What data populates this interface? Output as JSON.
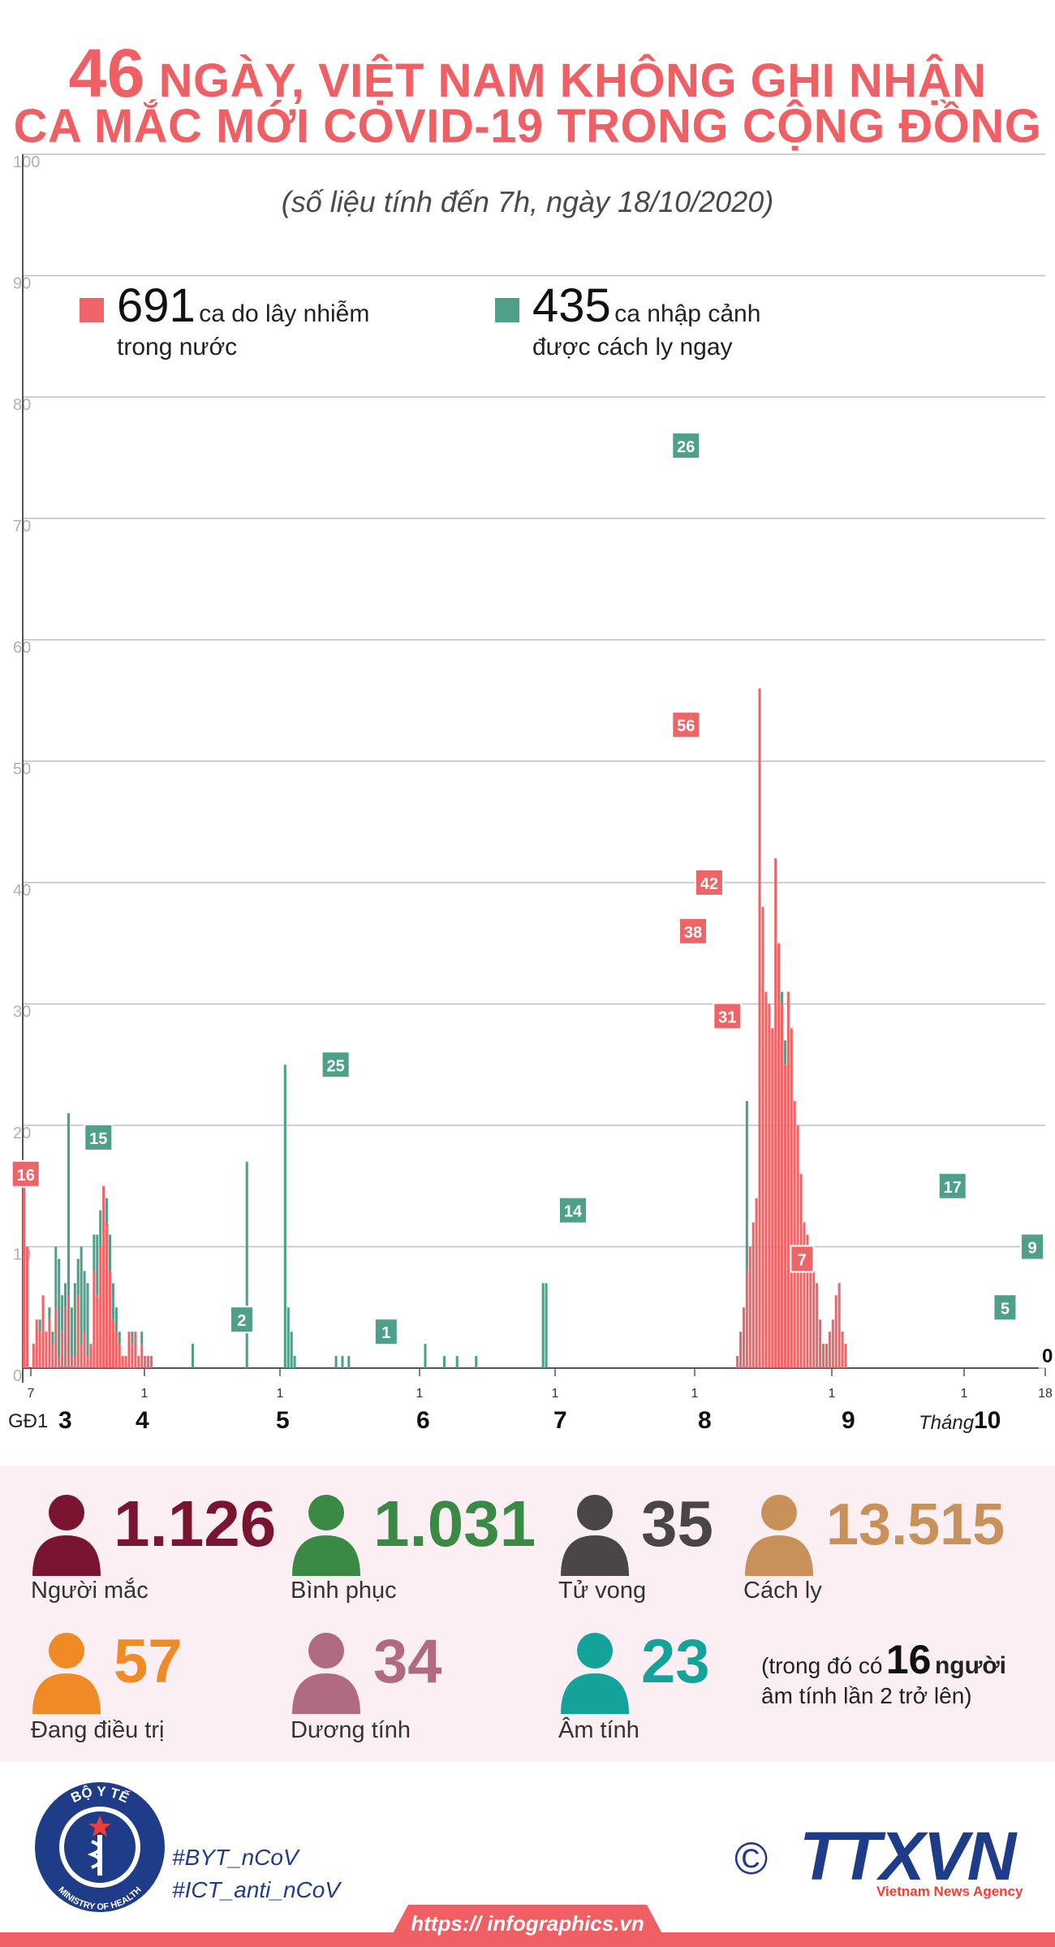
{
  "header": {
    "title_number": "46",
    "title_line1_rest": " NGÀY, VIỆT NAM KHÔNG GHI NHẬN",
    "title_line2": "CA MẮC MỚI COVID-19 TRONG CỘNG ĐỒNG",
    "subtitle": "(số liệu tính đến 7h, ngày 18/10/2020)"
  },
  "legend": {
    "domestic": {
      "number": "691",
      "label_line1": "ca do lây nhiễm",
      "label_line2": "trong nước",
      "color": "#ef6467"
    },
    "imported": {
      "number": "435",
      "label_line1": "ca nhập cảnh",
      "label_line2": "được cách ly ngay",
      "color": "#4ea08a"
    }
  },
  "chart_data": {
    "type": "bar",
    "stacked": true,
    "ylim": [
      0,
      100
    ],
    "yticks": [
      0,
      10,
      20,
      30,
      40,
      50,
      60,
      70,
      80,
      90,
      100
    ],
    "grid": true,
    "x_start_label": "7",
    "x_end_label": "18",
    "month_start_ticks": [
      "1",
      "1",
      "1",
      "1",
      "1",
      "1",
      "1"
    ],
    "month_labels": [
      "3",
      "4",
      "5",
      "6",
      "7",
      "8",
      "9",
      "10"
    ],
    "phase_label": "GĐ1",
    "month_prefix": "Tháng",
    "series": [
      {
        "name": "ca do lây nhiễm trong nước",
        "color": "#ef6467",
        "values": [
          16,
          10,
          0,
          2,
          4,
          3,
          6,
          3,
          4,
          2,
          5,
          1,
          3,
          5,
          6,
          1,
          1,
          6,
          2,
          3,
          1,
          2,
          8,
          6,
          10,
          15,
          12,
          8,
          4,
          3,
          2,
          1,
          1,
          3,
          2,
          3,
          1,
          2,
          1,
          1,
          1,
          0,
          0,
          0,
          0,
          0,
          0,
          0,
          0,
          0,
          0,
          0,
          0,
          0,
          0,
          0,
          0,
          0,
          0,
          0,
          0,
          0,
          0,
          0,
          0,
          0,
          0,
          0,
          0,
          0,
          0,
          0,
          0,
          0,
          0,
          0,
          0,
          0,
          0,
          0,
          0,
          0,
          0,
          0,
          0,
          0,
          0,
          0,
          0,
          0,
          0,
          0,
          0,
          0,
          0,
          0,
          0,
          0,
          0,
          0,
          0,
          0,
          0,
          0,
          0,
          0,
          0,
          0,
          0,
          0,
          0,
          0,
          0,
          0,
          0,
          0,
          0,
          0,
          0,
          0,
          0,
          0,
          0,
          0,
          0,
          0,
          0,
          0,
          0,
          0,
          0,
          0,
          0,
          0,
          0,
          0,
          0,
          0,
          0,
          0,
          0,
          0,
          0,
          0,
          0,
          0,
          0,
          0,
          0,
          0,
          0,
          0,
          0,
          0,
          0,
          0,
          0,
          0,
          0,
          0,
          0,
          0,
          0,
          0,
          0,
          0,
          0,
          0,
          0,
          0,
          0,
          0,
          0,
          0,
          0,
          0,
          0,
          0,
          0,
          0,
          0,
          0,
          0,
          0,
          0,
          0,
          0,
          0,
          0,
          0,
          0,
          0,
          0,
          0,
          0,
          0,
          0,
          0,
          0,
          0,
          0,
          0,
          0,
          0,
          0,
          0,
          0,
          0,
          0,
          0,
          0,
          0,
          0,
          0,
          0,
          0,
          0,
          0,
          0,
          0,
          0,
          0,
          0,
          0,
          1,
          3,
          5,
          8,
          10,
          12,
          14,
          56,
          38,
          31,
          30,
          28,
          42,
          35,
          30,
          25,
          31,
          28,
          22,
          20,
          16,
          12,
          11,
          9,
          8,
          7,
          4,
          2,
          2,
          3,
          4,
          6,
          7,
          3,
          2,
          0,
          0,
          0,
          0,
          0,
          0,
          0,
          0,
          0,
          0,
          0,
          0,
          0,
          0,
          0,
          0,
          0,
          0,
          0,
          0,
          0,
          0,
          0,
          0,
          0,
          0,
          0,
          0,
          0,
          0,
          0,
          0,
          0,
          0,
          0,
          0,
          0,
          0,
          0,
          0,
          0,
          0,
          0,
          0,
          0,
          0,
          0,
          0,
          0,
          0,
          0,
          0,
          0,
          0,
          0,
          0,
          0,
          0
        ]
      },
      {
        "name": "ca nhập cảnh được cách ly ngay",
        "color": "#4ea08a",
        "values": [
          0,
          0,
          0,
          0,
          0,
          1,
          0,
          0,
          1,
          1,
          5,
          8,
          3,
          2,
          15,
          4,
          6,
          3,
          8,
          5,
          6,
          0,
          3,
          5,
          3,
          0,
          2,
          3,
          3,
          2,
          1,
          0,
          0,
          0,
          1,
          0,
          0,
          1,
          0,
          0,
          0,
          0,
          0,
          0,
          0,
          0,
          0,
          0,
          0,
          0,
          0,
          0,
          0,
          2,
          0,
          0,
          0,
          0,
          0,
          0,
          0,
          0,
          0,
          0,
          0,
          0,
          0,
          0,
          0,
          0,
          17,
          0,
          0,
          0,
          0,
          0,
          0,
          0,
          0,
          0,
          0,
          0,
          25,
          5,
          3,
          1,
          0,
          0,
          0,
          0,
          0,
          0,
          0,
          0,
          0,
          0,
          0,
          0,
          1,
          0,
          1,
          0,
          1,
          0,
          0,
          0,
          0,
          0,
          0,
          0,
          0,
          0,
          0,
          0,
          0,
          0,
          0,
          0,
          0,
          0,
          0,
          0,
          0,
          0,
          0,
          0,
          2,
          0,
          0,
          0,
          0,
          0,
          1,
          0,
          0,
          0,
          1,
          0,
          0,
          0,
          0,
          0,
          1,
          0,
          0,
          0,
          0,
          0,
          0,
          0,
          0,
          0,
          0,
          0,
          0,
          0,
          0,
          0,
          0,
          0,
          0,
          0,
          0,
          7,
          7,
          0,
          0,
          0,
          0,
          0,
          0,
          0,
          0,
          0,
          0,
          0,
          0,
          0,
          0,
          0,
          0,
          0,
          0,
          0,
          0,
          0,
          0,
          0,
          0,
          0,
          0,
          0,
          0,
          0,
          0,
          0,
          0,
          0,
          0,
          0,
          0,
          0,
          0,
          0,
          0,
          0,
          0,
          0,
          0,
          0,
          0,
          0,
          0,
          0,
          0,
          0,
          0,
          0,
          0,
          0,
          0,
          0,
          0,
          0,
          0,
          0,
          0,
          14,
          0,
          0,
          0,
          0,
          0,
          0,
          0,
          0,
          0,
          0,
          1,
          2,
          0,
          0,
          0,
          0,
          0,
          0,
          0,
          0,
          0,
          0,
          0,
          0,
          0,
          0,
          0,
          0,
          0,
          0,
          0,
          0,
          0,
          0,
          0,
          0,
          0,
          0,
          0,
          0,
          0,
          0,
          0,
          0,
          0,
          0,
          0,
          0,
          0,
          0,
          0,
          0,
          0,
          0,
          0,
          0,
          0,
          0,
          0,
          0,
          0,
          0,
          0,
          0,
          0,
          0,
          0,
          0,
          0,
          0,
          0,
          0,
          0,
          0,
          0,
          0,
          0,
          0,
          0,
          0,
          0,
          0,
          0,
          0,
          0,
          0,
          0,
          0,
          0,
          0,
          0,
          0,
          0,
          0,
          0,
          0,
          0,
          0,
          0,
          0,
          0,
          0,
          0,
          0,
          0,
          0,
          0,
          0,
          0,
          0,
          0,
          0,
          0,
          0,
          0,
          0,
          0,
          0,
          0,
          0,
          0,
          0,
          0,
          0,
          0,
          0,
          0,
          0,
          0,
          0,
          0,
          0,
          0,
          0,
          0,
          0,
          0,
          0,
          0,
          0,
          0,
          0,
          0,
          0,
          0,
          0,
          0,
          0,
          0,
          0,
          0,
          0,
          0,
          0,
          0,
          0,
          0,
          0,
          0,
          0,
          0,
          0,
          0,
          0,
          0,
          0,
          0,
          0,
          0,
          0,
          0,
          0,
          0,
          0,
          0,
          0,
          0,
          0,
          0,
          0,
          0,
          0,
          0,
          0,
          0,
          0,
          0,
          0,
          0,
          0,
          0,
          0,
          0,
          0,
          0,
          0,
          0,
          0,
          0,
          0,
          0
        ]
      }
    ],
    "annotations": [
      {
        "label": "16",
        "series": "domestic",
        "x_fraction": 0.003,
        "value": 16
      },
      {
        "label": "15",
        "series": "imported",
        "x_fraction": 0.075,
        "value": 19
      },
      {
        "label": "2",
        "series": "imported",
        "x_fraction": 0.217,
        "value": 4
      },
      {
        "label": "25",
        "series": "imported",
        "x_fraction": 0.31,
        "value": 25
      },
      {
        "label": "1",
        "series": "imported",
        "x_fraction": 0.36,
        "value": 3
      },
      {
        "label": "14",
        "series": "imported",
        "x_fraction": 0.545,
        "value": 13
      },
      {
        "label": "26",
        "series": "imported",
        "x_fraction": 0.657,
        "value": 76
      },
      {
        "label": "56",
        "series": "domestic",
        "x_fraction": 0.657,
        "value": 53
      },
      {
        "label": "42",
        "series": "domestic",
        "x_fraction": 0.68,
        "value": 40
      },
      {
        "label": "38",
        "series": "domestic",
        "x_fraction": 0.664,
        "value": 36
      },
      {
        "label": "31",
        "series": "domestic",
        "x_fraction": 0.698,
        "value": 29
      },
      {
        "label": "7",
        "series": "domestic",
        "x_fraction": 0.772,
        "value": 9
      },
      {
        "label": "17",
        "series": "imported",
        "x_fraction": 0.921,
        "value": 15
      },
      {
        "label": "5",
        "series": "imported",
        "x_fraction": 0.973,
        "value": 5
      },
      {
        "label": "9",
        "series": "imported",
        "x_fraction": 1.0,
        "value": 10
      },
      {
        "label": "0",
        "series": "none",
        "x_fraction": 1.015,
        "value": 1
      }
    ]
  },
  "stats": [
    {
      "number": "1.126",
      "label": "Người mắc",
      "color": "#7a1531"
    },
    {
      "number": "1.031",
      "label": "Bình phục",
      "color": "#3a8a45"
    },
    {
      "number": "35",
      "label": "Tử vong",
      "color": "#4a4648"
    },
    {
      "number": "13.515",
      "label": "Cách ly",
      "color": "#c9915a"
    },
    {
      "number": "57",
      "label": "Đang điều trị",
      "color": "#f08a24"
    },
    {
      "number": "34",
      "label": "Dương tính",
      "color": "#b06b80"
    },
    {
      "number": "23",
      "label": "Âm tính",
      "color": "#14a39a"
    }
  ],
  "note": {
    "prefix": "(trong đó có",
    "number": "16",
    "suffix": "người",
    "line2": "âm tính lần 2 trở lên)"
  },
  "footer": {
    "ministry_top": "BỘ Y TẾ",
    "ministry_bottom": "MINISTRY OF HEALTH",
    "hashtag1": "#BYT_nCoV",
    "hashtag2": "#ICT_anti_nCoV",
    "copyright": "©",
    "agency_logo": "TTXVN",
    "agency_name": "Vietnam News Agency",
    "url": "https:// infographics.vn"
  },
  "colors": {
    "accent": "#ef5f63",
    "navy": "#1f3c88"
  }
}
